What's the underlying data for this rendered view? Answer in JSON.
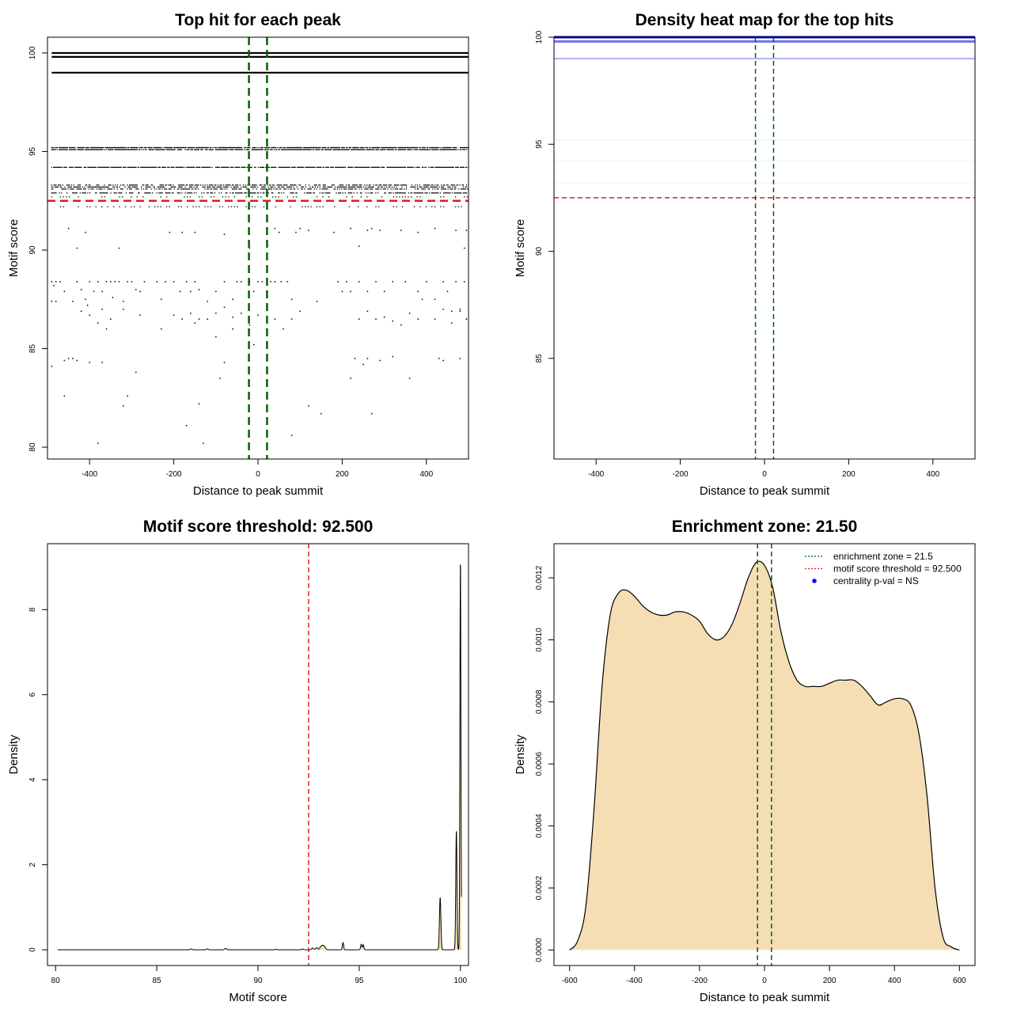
{
  "chart_data": [
    {
      "type": "scatter",
      "title": "Top hit for each peak",
      "xlabel": "Distance to peak summit",
      "ylabel": "Motif score",
      "xlim": [
        -500,
        500
      ],
      "ylim": [
        79.4,
        100.8
      ],
      "xticks": [
        -400,
        -200,
        0,
        200,
        400
      ],
      "yticks": [
        80,
        85,
        90,
        95,
        100
      ],
      "score_bands": [
        {
          "y": 100.0,
          "pattern": "solid"
        },
        {
          "y": 99.8,
          "pattern": "solid"
        },
        {
          "y": 99.0,
          "pattern": "solid"
        },
        {
          "y": 95.2,
          "pattern": "dense"
        },
        {
          "y": 95.1,
          "pattern": "dense"
        },
        {
          "y": 94.2,
          "pattern": "dense"
        },
        {
          "y": 93.3,
          "pattern": "gappy"
        },
        {
          "y": 93.2,
          "pattern": "gappy"
        },
        {
          "y": 93.1,
          "pattern": "gappy"
        },
        {
          "y": 92.9,
          "pattern": "gappy"
        },
        {
          "y": 92.7,
          "pattern": "sparse"
        },
        {
          "y": 92.2,
          "pattern": "sparse"
        }
      ],
      "scattered_points": [
        [
          -490,
          88.4
        ],
        [
          -480,
          88.4
        ],
        [
          -470,
          88.4
        ],
        [
          -485,
          88.2
        ],
        [
          -480,
          87.4
        ],
        [
          -490,
          87.4
        ],
        [
          -460,
          87.9
        ],
        [
          -440,
          87.4
        ],
        [
          -430,
          88.4
        ],
        [
          -420,
          88.0
        ],
        [
          -410,
          87.5
        ],
        [
          -405,
          87.2
        ],
        [
          -400,
          88.4
        ],
        [
          -390,
          87.9
        ],
        [
          -380,
          88.4
        ],
        [
          -370,
          87.9
        ],
        [
          -360,
          88.4
        ],
        [
          -350,
          88.4
        ],
        [
          -345,
          87.6
        ],
        [
          -340,
          88.4
        ],
        [
          -330,
          88.4
        ],
        [
          -320,
          87.4
        ],
        [
          -310,
          88.4
        ],
        [
          -300,
          88.4
        ],
        [
          -290,
          88.0
        ],
        [
          -280,
          87.9
        ],
        [
          -270,
          88.4
        ],
        [
          -240,
          88.4
        ],
        [
          -230,
          87.5
        ],
        [
          -220,
          88.4
        ],
        [
          -200,
          88.4
        ],
        [
          -185,
          87.9
        ],
        [
          -170,
          88.4
        ],
        [
          -160,
          87.9
        ],
        [
          -150,
          88.4
        ],
        [
          -140,
          88.0
        ],
        [
          -120,
          87.4
        ],
        [
          -100,
          87.9
        ],
        [
          -80,
          88.4
        ],
        [
          -60,
          87.5
        ],
        [
          -50,
          88.4
        ],
        [
          -40,
          88.4
        ],
        [
          -20,
          88.4
        ],
        [
          -10,
          87.9
        ],
        [
          0,
          88.4
        ],
        [
          10,
          88.4
        ],
        [
          20,
          87.9
        ],
        [
          30,
          88.4
        ],
        [
          40,
          88.4
        ],
        [
          55,
          88.4
        ],
        [
          70,
          88.4
        ],
        [
          80,
          87.5
        ],
        [
          140,
          87.4
        ],
        [
          190,
          88.4
        ],
        [
          200,
          87.9
        ],
        [
          210,
          88.4
        ],
        [
          220,
          87.9
        ],
        [
          240,
          88.4
        ],
        [
          260,
          87.9
        ],
        [
          280,
          88.4
        ],
        [
          300,
          87.9
        ],
        [
          320,
          88.4
        ],
        [
          350,
          88.4
        ],
        [
          380,
          87.9
        ],
        [
          390,
          87.5
        ],
        [
          400,
          88.4
        ],
        [
          420,
          87.5
        ],
        [
          440,
          88.4
        ],
        [
          450,
          87.9
        ],
        [
          470,
          88.4
        ],
        [
          480,
          87.0
        ],
        [
          490,
          88.4
        ],
        [
          495,
          86.5
        ],
        [
          -420,
          86.9
        ],
        [
          -400,
          86.7
        ],
        [
          -380,
          86.3
        ],
        [
          -370,
          87.0
        ],
        [
          -360,
          86.0
        ],
        [
          -350,
          86.5
        ],
        [
          -320,
          87.0
        ],
        [
          -280,
          86.7
        ],
        [
          -230,
          86.0
        ],
        [
          -200,
          86.7
        ],
        [
          -180,
          86.5
        ],
        [
          -160,
          86.8
        ],
        [
          -140,
          86.5
        ],
        [
          -120,
          86.5
        ],
        [
          -100,
          86.8
        ],
        [
          -80,
          87.1
        ],
        [
          -60,
          86.6
        ],
        [
          -40,
          86.8
        ],
        [
          -20,
          86.2
        ],
        [
          0,
          86.7
        ],
        [
          20,
          86.0
        ],
        [
          40,
          86.5
        ],
        [
          60,
          86.0
        ],
        [
          80,
          86.5
        ],
        [
          100,
          86.9
        ],
        [
          240,
          86.5
        ],
        [
          260,
          86.9
        ],
        [
          280,
          86.5
        ],
        [
          300,
          86.6
        ],
        [
          320,
          86.4
        ],
        [
          340,
          86.2
        ],
        [
          360,
          86.8
        ],
        [
          380,
          86.5
        ],
        [
          420,
          86.5
        ],
        [
          440,
          87.0
        ],
        [
          460,
          86.9
        ],
        [
          480,
          86.9
        ],
        [
          495,
          86.5
        ],
        [
          460,
          86.3
        ],
        [
          -150,
          86.3
        ],
        [
          -60,
          86.0
        ],
        [
          -460,
          84.4
        ],
        [
          -450,
          84.5
        ],
        [
          -440,
          84.5
        ],
        [
          -430,
          84.4
        ],
        [
          -400,
          84.3
        ],
        [
          -370,
          84.3
        ],
        [
          -290,
          83.8
        ],
        [
          -100,
          85.6
        ],
        [
          -80,
          84.3
        ],
        [
          -90,
          83.5
        ],
        [
          -10,
          85.2
        ],
        [
          230,
          84.5
        ],
        [
          250,
          84.2
        ],
        [
          260,
          84.5
        ],
        [
          290,
          84.4
        ],
        [
          320,
          84.6
        ],
        [
          430,
          84.5
        ],
        [
          440,
          84.4
        ],
        [
          480,
          84.5
        ],
        [
          220,
          83.5
        ],
        [
          360,
          83.5
        ],
        [
          -490,
          84.1
        ],
        [
          -460,
          82.6
        ],
        [
          -320,
          82.1
        ],
        [
          -310,
          82.6
        ],
        [
          -140,
          82.2
        ],
        [
          -170,
          81.1
        ],
        [
          -130,
          80.2
        ],
        [
          -380,
          80.2
        ],
        [
          80,
          80.6
        ],
        [
          120,
          82.1
        ],
        [
          150,
          81.7
        ],
        [
          270,
          81.7
        ],
        [
          -450,
          91.1
        ],
        [
          -430,
          90.1
        ],
        [
          -410,
          90.9
        ],
        [
          -330,
          90.1
        ],
        [
          -210,
          90.9
        ],
        [
          -180,
          90.9
        ],
        [
          -150,
          90.9
        ],
        [
          -80,
          90.8
        ],
        [
          -20,
          90.1
        ],
        [
          40,
          91.1
        ],
        [
          50,
          90.9
        ],
        [
          90,
          90.9
        ],
        [
          100,
          91.1
        ],
        [
          120,
          91.0
        ],
        [
          180,
          90.9
        ],
        [
          220,
          91.1
        ],
        [
          240,
          90.2
        ],
        [
          260,
          91.0
        ],
        [
          270,
          91.1
        ],
        [
          290,
          91.0
        ],
        [
          340,
          91.0
        ],
        [
          380,
          90.9
        ],
        [
          420,
          91.1
        ],
        [
          470,
          91.0
        ],
        [
          490,
          90.1
        ],
        [
          495,
          91.0
        ]
      ],
      "hlines": [
        {
          "y": 92.5,
          "color": "#e41a1c"
        }
      ],
      "vlines": [
        {
          "x": -21.5,
          "color": "#006400"
        },
        {
          "x": 21.5,
          "color": "#006400"
        }
      ]
    },
    {
      "type": "heatmap",
      "title": "Density heat map for the top hits",
      "xlabel": "Distance to peak summit",
      "ylabel": "Motif score",
      "xlim": [
        -500,
        500
      ],
      "ylim": [
        80.3,
        100
      ],
      "xticks": [
        -400,
        -200,
        0,
        200,
        400
      ],
      "yticks": [
        85,
        90,
        95,
        100
      ],
      "density_bands": [
        {
          "y": 100.0,
          "intensity": 0.95
        },
        {
          "y": 99.8,
          "intensity": 0.55
        },
        {
          "y": 99.0,
          "intensity": 0.3
        },
        {
          "y": 95.2,
          "intensity": 0.05
        },
        {
          "y": 94.2,
          "intensity": 0.04
        },
        {
          "y": 93.2,
          "intensity": 0.03
        }
      ],
      "hlines": [
        {
          "y": 92.5,
          "color": "#e41a1c"
        }
      ],
      "vlines": [
        {
          "x": -21.5,
          "color": "#006400"
        },
        {
          "x": 21.5,
          "color": "#006400"
        }
      ]
    },
    {
      "type": "area",
      "title": "Motif score threshold: 92.500",
      "xlabel": "Motif score",
      "ylabel": "Density",
      "xlim": [
        79.6,
        100.4
      ],
      "ylim": [
        -0.37,
        9.55
      ],
      "xticks": [
        80,
        85,
        90,
        95,
        100
      ],
      "yticks": [
        0,
        2,
        4,
        6,
        8
      ],
      "peaks": [
        {
          "x": 86.7,
          "h": 0.02,
          "w": 0.05
        },
        {
          "x": 87.5,
          "h": 0.02,
          "w": 0.05
        },
        {
          "x": 88.4,
          "h": 0.03,
          "w": 0.05
        },
        {
          "x": 90.9,
          "h": 0.01,
          "w": 0.05
        },
        {
          "x": 92.2,
          "h": 0.02,
          "w": 0.04
        },
        {
          "x": 92.7,
          "h": 0.04,
          "w": 0.05
        },
        {
          "x": 92.9,
          "h": 0.05,
          "w": 0.05
        },
        {
          "x": 93.1,
          "h": 0.07,
          "w": 0.05
        },
        {
          "x": 93.2,
          "h": 0.09,
          "w": 0.05
        },
        {
          "x": 93.3,
          "h": 0.06,
          "w": 0.05
        },
        {
          "x": 94.2,
          "h": 0.17,
          "w": 0.03
        },
        {
          "x": 95.1,
          "h": 0.13,
          "w": 0.03
        },
        {
          "x": 95.2,
          "h": 0.12,
          "w": 0.03
        },
        {
          "x": 99.0,
          "h": 1.23,
          "w": 0.035
        },
        {
          "x": 99.8,
          "h": 2.81,
          "w": 0.03
        },
        {
          "x": 100.0,
          "h": 9.2,
          "w": 0.025
        }
      ],
      "vlines": [
        {
          "x": 92.5,
          "color": "#e41a1c"
        }
      ]
    },
    {
      "type": "area",
      "title": "Enrichment zone: 21.50",
      "xlabel": "Distance to peak summit",
      "ylabel": "Density",
      "xlim": [
        -648,
        648
      ],
      "ylim": [
        -5e-05,
        0.00131
      ],
      "xticks": [
        -600,
        -400,
        -200,
        0,
        200,
        400,
        600
      ],
      "yticks": [
        "0.0000",
        "0.0002",
        "0.0004",
        "0.0006",
        "0.0008",
        "0.0010",
        "0.0012"
      ],
      "x": [
        -600,
        -575,
        -550,
        -525,
        -500,
        -475,
        -450,
        -425,
        -400,
        -375,
        -350,
        -325,
        -300,
        -275,
        -250,
        -225,
        -200,
        -175,
        -150,
        -125,
        -100,
        -75,
        -50,
        -25,
        0,
        25,
        50,
        75,
        100,
        125,
        150,
        175,
        200,
        225,
        250,
        275,
        300,
        325,
        350,
        375,
        400,
        425,
        450,
        475,
        500,
        525,
        550,
        575,
        600
      ],
      "y": [
        0.0,
        3e-05,
        0.00014,
        0.00045,
        0.00085,
        0.00108,
        0.00115,
        0.00116,
        0.00114,
        0.00111,
        0.00109,
        0.00108,
        0.00108,
        0.00109,
        0.00109,
        0.00108,
        0.00106,
        0.00102,
        0.001,
        0.00101,
        0.00105,
        0.00112,
        0.0012,
        0.00125,
        0.00124,
        0.00117,
        0.00103,
        0.00093,
        0.00087,
        0.00085,
        0.00085,
        0.00085,
        0.00086,
        0.00087,
        0.00087,
        0.00087,
        0.00085,
        0.00082,
        0.00079,
        0.0008,
        0.00081,
        0.00081,
        0.00079,
        0.0007,
        0.0005,
        0.0002,
        4e-05,
        1e-05,
        0.0
      ],
      "vlines": [
        {
          "x": -21.5,
          "color": "#006400"
        },
        {
          "x": 21.5,
          "color": "#006400"
        }
      ],
      "legend": {
        "position": "top-right",
        "entries": [
          {
            "label": "enrichment zone = 21.5",
            "color": "#006400",
            "style": "dotted-line"
          },
          {
            "label": "motif score threshold = 92.500",
            "color": "#e41a1c",
            "style": "dotted-line"
          },
          {
            "label": "centrality p-val = NS",
            "color": "#0000ff",
            "style": "dot"
          }
        ]
      }
    }
  ]
}
